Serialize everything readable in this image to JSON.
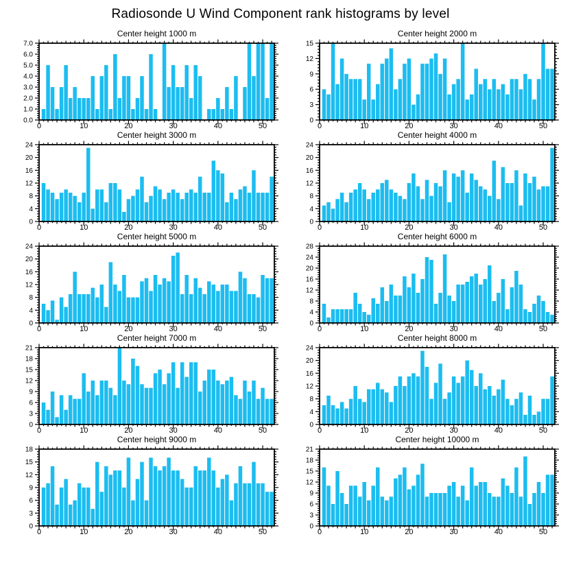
{
  "page_title": "Radiosonde U Wind Component rank histograms by level",
  "bar_color": "#1CBDF0",
  "axis_color": "#000000",
  "chart_data": [
    {
      "type": "bar",
      "title": "Center height 1000 m",
      "ylim": [
        0,
        7
      ],
      "ytick_step": 1,
      "ytick_labels": [
        "0.0",
        "1.0",
        "2.0",
        "3.0",
        "4.0",
        "5.0",
        "6.0",
        "7.0"
      ],
      "xlim": [
        0,
        52.6
      ],
      "xticks": [
        0,
        10,
        20,
        30,
        40,
        50
      ],
      "xtick_labels": [
        "0",
        "10",
        "20",
        "30",
        "40",
        "50"
      ],
      "grid": false,
      "values": [
        1,
        5,
        3,
        1,
        3,
        5,
        2,
        3,
        2,
        2,
        2,
        4,
        1,
        4,
        5,
        1,
        6,
        2,
        4,
        4,
        1,
        2,
        4,
        1,
        6,
        1,
        0,
        7,
        3,
        5,
        3,
        3,
        5,
        2,
        5,
        4,
        0,
        1,
        1,
        2,
        1,
        3,
        1,
        4,
        0,
        3,
        7,
        4,
        7,
        7,
        2,
        7
      ]
    },
    {
      "type": "bar",
      "title": "Center height 2000 m",
      "ylim": [
        0,
        15
      ],
      "ytick_step": 3,
      "ytick_labels": [
        "0",
        "3",
        "6",
        "9",
        "12",
        "15"
      ],
      "xlim": [
        0,
        52.6
      ],
      "xticks": [
        0,
        10,
        20,
        30,
        40,
        50
      ],
      "xtick_labels": [
        "0",
        "10",
        "20",
        "30",
        "40",
        "50"
      ],
      "grid": false,
      "values": [
        6,
        5,
        15,
        7,
        12,
        9,
        8,
        8,
        8,
        4,
        11,
        4,
        7,
        11,
        12,
        14,
        6,
        8,
        11,
        12,
        3,
        5,
        11,
        11,
        12,
        13,
        9,
        12,
        5,
        7,
        8,
        15,
        4,
        5,
        10,
        7,
        8,
        6,
        8,
        6,
        7,
        5,
        8,
        8,
        6,
        9,
        8,
        4,
        8,
        15,
        10,
        10
      ]
    },
    {
      "type": "bar",
      "title": "Center height 3000 m",
      "ylim": [
        0,
        24
      ],
      "ytick_step": 4,
      "ytick_labels": [
        "0",
        "4",
        "8",
        "12",
        "16",
        "20",
        "24"
      ],
      "xlim": [
        0,
        52.6
      ],
      "xticks": [
        0,
        10,
        20,
        30,
        40,
        50
      ],
      "xtick_labels": [
        "0",
        "10",
        "20",
        "30",
        "40",
        "50"
      ],
      "grid": false,
      "values": [
        12,
        10,
        9,
        7,
        9,
        10,
        9,
        8,
        6,
        9,
        23,
        4,
        10,
        10,
        6,
        12,
        12,
        10,
        3,
        7,
        8,
        10,
        14,
        6,
        8,
        11,
        10,
        7,
        9,
        10,
        9,
        7,
        9,
        10,
        9,
        14,
        9,
        9,
        19,
        16,
        15,
        6,
        9,
        7,
        10,
        11,
        9,
        16,
        9,
        9,
        9,
        14
      ]
    },
    {
      "type": "bar",
      "title": "Center height 4000 m",
      "ylim": [
        0,
        24
      ],
      "ytick_step": 4,
      "ytick_labels": [
        "0",
        "4",
        "8",
        "12",
        "16",
        "20",
        "24"
      ],
      "xlim": [
        0,
        52.6
      ],
      "xticks": [
        0,
        10,
        20,
        30,
        40,
        50
      ],
      "xtick_labels": [
        "0",
        "10",
        "20",
        "30",
        "40",
        "50"
      ],
      "grid": false,
      "values": [
        5,
        6,
        4,
        7,
        9,
        6,
        9,
        10,
        12,
        10,
        7,
        9,
        10,
        12,
        13,
        10,
        9,
        8,
        7,
        12,
        15,
        11,
        7,
        13,
        8,
        12,
        11,
        16,
        6,
        15,
        14,
        16,
        9,
        15,
        13,
        11,
        10,
        8,
        19,
        7,
        17,
        12,
        12,
        16,
        5,
        15,
        12,
        14,
        10,
        11,
        11,
        23
      ]
    },
    {
      "type": "bar",
      "title": "Center height 5000 m",
      "ylim": [
        0,
        24
      ],
      "ytick_step": 4,
      "ytick_labels": [
        "0",
        "4",
        "8",
        "12",
        "16",
        "20",
        "24"
      ],
      "xlim": [
        0,
        52.6
      ],
      "xticks": [
        0,
        10,
        20,
        30,
        40,
        50
      ],
      "xtick_labels": [
        "0",
        "10",
        "20",
        "30",
        "40",
        "50"
      ],
      "grid": false,
      "values": [
        6,
        4,
        7,
        1,
        8,
        5,
        9,
        16,
        9,
        9,
        9,
        11,
        8,
        12,
        5,
        19,
        12,
        10,
        15,
        8,
        8,
        8,
        13,
        14,
        10,
        15,
        12,
        14,
        13,
        21,
        22,
        9,
        15,
        9,
        14,
        11,
        9,
        13,
        12,
        10,
        12,
        12,
        10,
        10,
        16,
        14,
        9,
        9,
        8,
        15,
        14,
        14
      ]
    },
    {
      "type": "bar",
      "title": "Center height 6000 m",
      "ylim": [
        0,
        28
      ],
      "ytick_step": 4,
      "ytick_labels": [
        "0",
        "4",
        "8",
        "12",
        "16",
        "20",
        "24",
        "28"
      ],
      "xlim": [
        0,
        52.6
      ],
      "xticks": [
        0,
        10,
        20,
        30,
        40,
        50
      ],
      "xtick_labels": [
        "0",
        "10",
        "20",
        "30",
        "40",
        "50"
      ],
      "grid": false,
      "values": [
        7,
        2,
        5,
        5,
        5,
        5,
        5,
        11,
        7,
        4,
        3,
        9,
        7,
        13,
        8,
        14,
        10,
        10,
        17,
        13,
        18,
        11,
        16,
        24,
        23,
        7,
        11,
        25,
        10,
        8,
        14,
        14,
        15,
        17,
        18,
        14,
        16,
        21,
        8,
        11,
        16,
        5,
        13,
        19,
        14,
        5,
        4,
        7,
        10,
        8,
        4,
        3
      ]
    },
    {
      "type": "bar",
      "title": "Center height 7000 m",
      "ylim": [
        0,
        21
      ],
      "ytick_step": 3,
      "ytick_labels": [
        "0",
        "3",
        "6",
        "9",
        "12",
        "15",
        "18",
        "21"
      ],
      "xlim": [
        0,
        52.6
      ],
      "xticks": [
        0,
        10,
        20,
        30,
        40,
        50
      ],
      "xtick_labels": [
        "0",
        "10",
        "20",
        "30",
        "40",
        "50"
      ],
      "grid": false,
      "values": [
        6,
        4,
        9,
        2,
        8,
        4,
        8,
        7,
        7,
        14,
        9,
        12,
        8,
        12,
        12,
        10,
        8,
        21,
        12,
        11,
        18,
        16,
        11,
        10,
        10,
        14,
        15,
        11,
        14,
        17,
        10,
        17,
        13,
        17,
        17,
        9,
        12,
        15,
        15,
        12,
        11,
        12,
        13,
        8,
        7,
        12,
        9,
        12,
        7,
        10,
        7,
        7
      ]
    },
    {
      "type": "bar",
      "title": "Center height 8000 m",
      "ylim": [
        0,
        24
      ],
      "ytick_step": 4,
      "ytick_labels": [
        "0",
        "4",
        "8",
        "12",
        "16",
        "20",
        "24"
      ],
      "xlim": [
        0,
        52.6
      ],
      "xticks": [
        0,
        10,
        20,
        30,
        40,
        50
      ],
      "xtick_labels": [
        "0",
        "10",
        "20",
        "30",
        "40",
        "50"
      ],
      "grid": false,
      "values": [
        6,
        9,
        6,
        5,
        7,
        5,
        8,
        12,
        8,
        7,
        11,
        11,
        13,
        11,
        10,
        7,
        12,
        15,
        12,
        15,
        16,
        15,
        23,
        18,
        8,
        13,
        19,
        8,
        10,
        15,
        13,
        15,
        20,
        17,
        12,
        16,
        11,
        12,
        9,
        11,
        14,
        8,
        6,
        8,
        10,
        3,
        9,
        3,
        4,
        8,
        8,
        15
      ]
    },
    {
      "type": "bar",
      "title": "Center height 9000 m",
      "ylim": [
        0,
        18
      ],
      "ytick_step": 3,
      "ytick_labels": [
        "0",
        "3",
        "6",
        "9",
        "12",
        "15",
        "18"
      ],
      "xlim": [
        0,
        52.6
      ],
      "xticks": [
        0,
        10,
        20,
        30,
        40,
        50
      ],
      "xtick_labels": [
        "0",
        "10",
        "20",
        "30",
        "40",
        "50"
      ],
      "grid": false,
      "values": [
        9,
        10,
        14,
        5,
        9,
        11,
        5,
        6,
        10,
        9,
        9,
        4,
        15,
        8,
        14,
        12,
        13,
        13,
        9,
        16,
        6,
        11,
        15,
        6,
        16,
        14,
        13,
        14,
        16,
        13,
        13,
        11,
        9,
        9,
        14,
        13,
        13,
        16,
        13,
        9,
        11,
        12,
        6,
        10,
        14,
        10,
        10,
        15,
        10,
        10,
        8,
        8
      ]
    },
    {
      "type": "bar",
      "title": "Center height 10000 m",
      "ylim": [
        0,
        21
      ],
      "ytick_step": 3,
      "ytick_labels": [
        "0",
        "3",
        "6",
        "9",
        "12",
        "15",
        "18",
        "21"
      ],
      "xlim": [
        0,
        52.6
      ],
      "xticks": [
        0,
        10,
        20,
        30,
        40,
        50
      ],
      "xtick_labels": [
        "0",
        "10",
        "20",
        "30",
        "40",
        "50"
      ],
      "grid": false,
      "values": [
        16,
        11,
        6,
        15,
        9,
        6,
        11,
        11,
        8,
        12,
        7,
        11,
        16,
        8,
        7,
        8,
        13,
        14,
        16,
        10,
        11,
        14,
        17,
        8,
        9,
        9,
        9,
        9,
        11,
        12,
        8,
        11,
        7,
        16,
        11,
        12,
        12,
        9,
        8,
        8,
        13,
        11,
        9,
        16,
        8,
        19,
        6,
        9,
        12,
        9,
        14,
        14
      ]
    }
  ]
}
